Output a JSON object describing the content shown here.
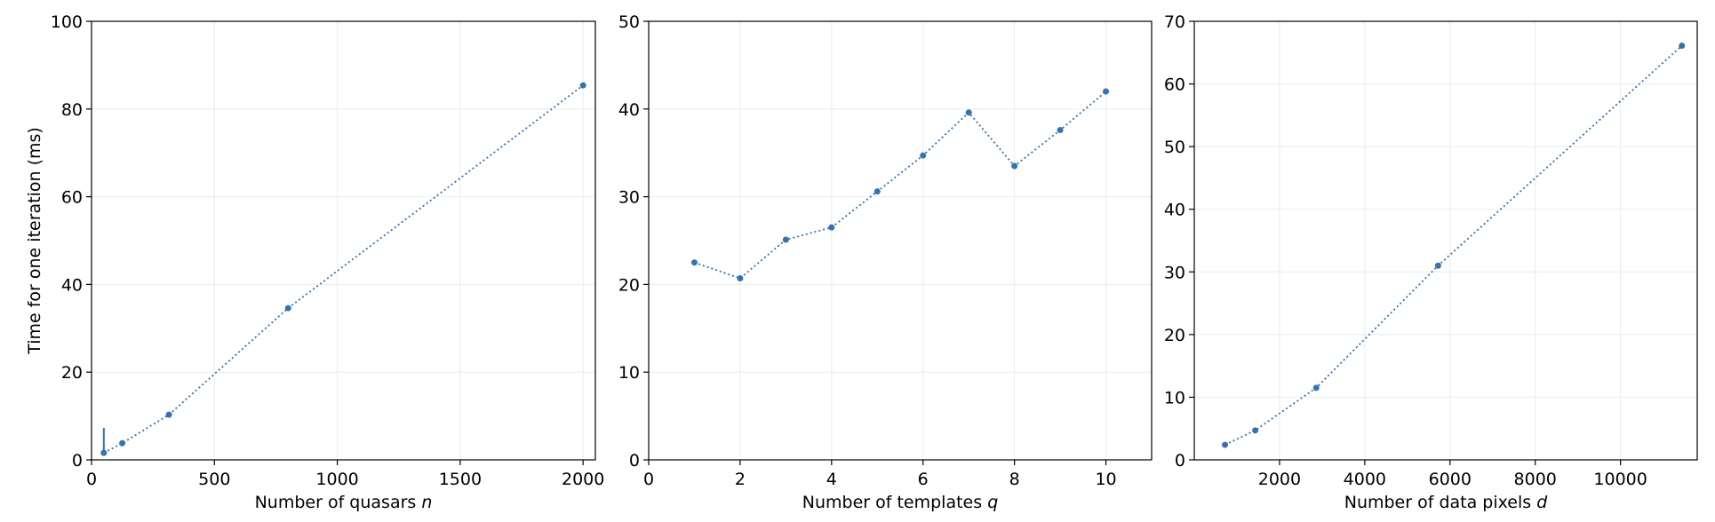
{
  "chart_data": [
    {
      "type": "line",
      "xlabel": "Number of quasars",
      "xlabel_var": "n",
      "ylabel": "Time for one iteration (ms)",
      "xlim": [
        0,
        2050
      ],
      "ylim": [
        0,
        100
      ],
      "xticks": [
        0,
        500,
        1000,
        1500,
        2000
      ],
      "yticks": [
        0,
        20,
        40,
        60,
        80,
        100
      ],
      "grid": true,
      "color": "#3572b0",
      "series": [
        {
          "x": [
            50,
            125,
            315,
            800,
            2000
          ],
          "y": [
            1.6,
            3.8,
            10.3,
            34.6,
            85.4
          ],
          "yerr_upper": [
            7.3,
            null,
            null,
            null,
            null
          ]
        }
      ]
    },
    {
      "type": "line",
      "xlabel": "Number of templates",
      "xlabel_var": "q",
      "ylabel": "",
      "xlim": [
        0,
        11
      ],
      "ylim": [
        0,
        50
      ],
      "xticks": [
        0,
        2,
        4,
        6,
        8,
        10
      ],
      "yticks": [
        0,
        10,
        20,
        30,
        40,
        50
      ],
      "grid": true,
      "color": "#3572b0",
      "series": [
        {
          "x": [
            1,
            2,
            3,
            4,
            5,
            6,
            7,
            8,
            9,
            10
          ],
          "y": [
            22.5,
            20.7,
            25.1,
            26.5,
            30.6,
            34.7,
            39.6,
            33.5,
            37.6,
            42.0
          ]
        }
      ]
    },
    {
      "type": "line",
      "xlabel": "Number of data pixels",
      "xlabel_var": "d",
      "ylabel": "",
      "xlim": [
        0,
        11800
      ],
      "ylim": [
        0,
        70
      ],
      "xticks": [
        2000,
        4000,
        6000,
        8000,
        10000
      ],
      "yticks": [
        0,
        10,
        20,
        30,
        40,
        50,
        60,
        70
      ],
      "grid": true,
      "color": "#3572b0",
      "series": [
        {
          "x": [
            720,
            1430,
            2860,
            5720,
            11440
          ],
          "y": [
            2.4,
            4.7,
            11.5,
            31.0,
            66.1
          ]
        }
      ]
    }
  ]
}
